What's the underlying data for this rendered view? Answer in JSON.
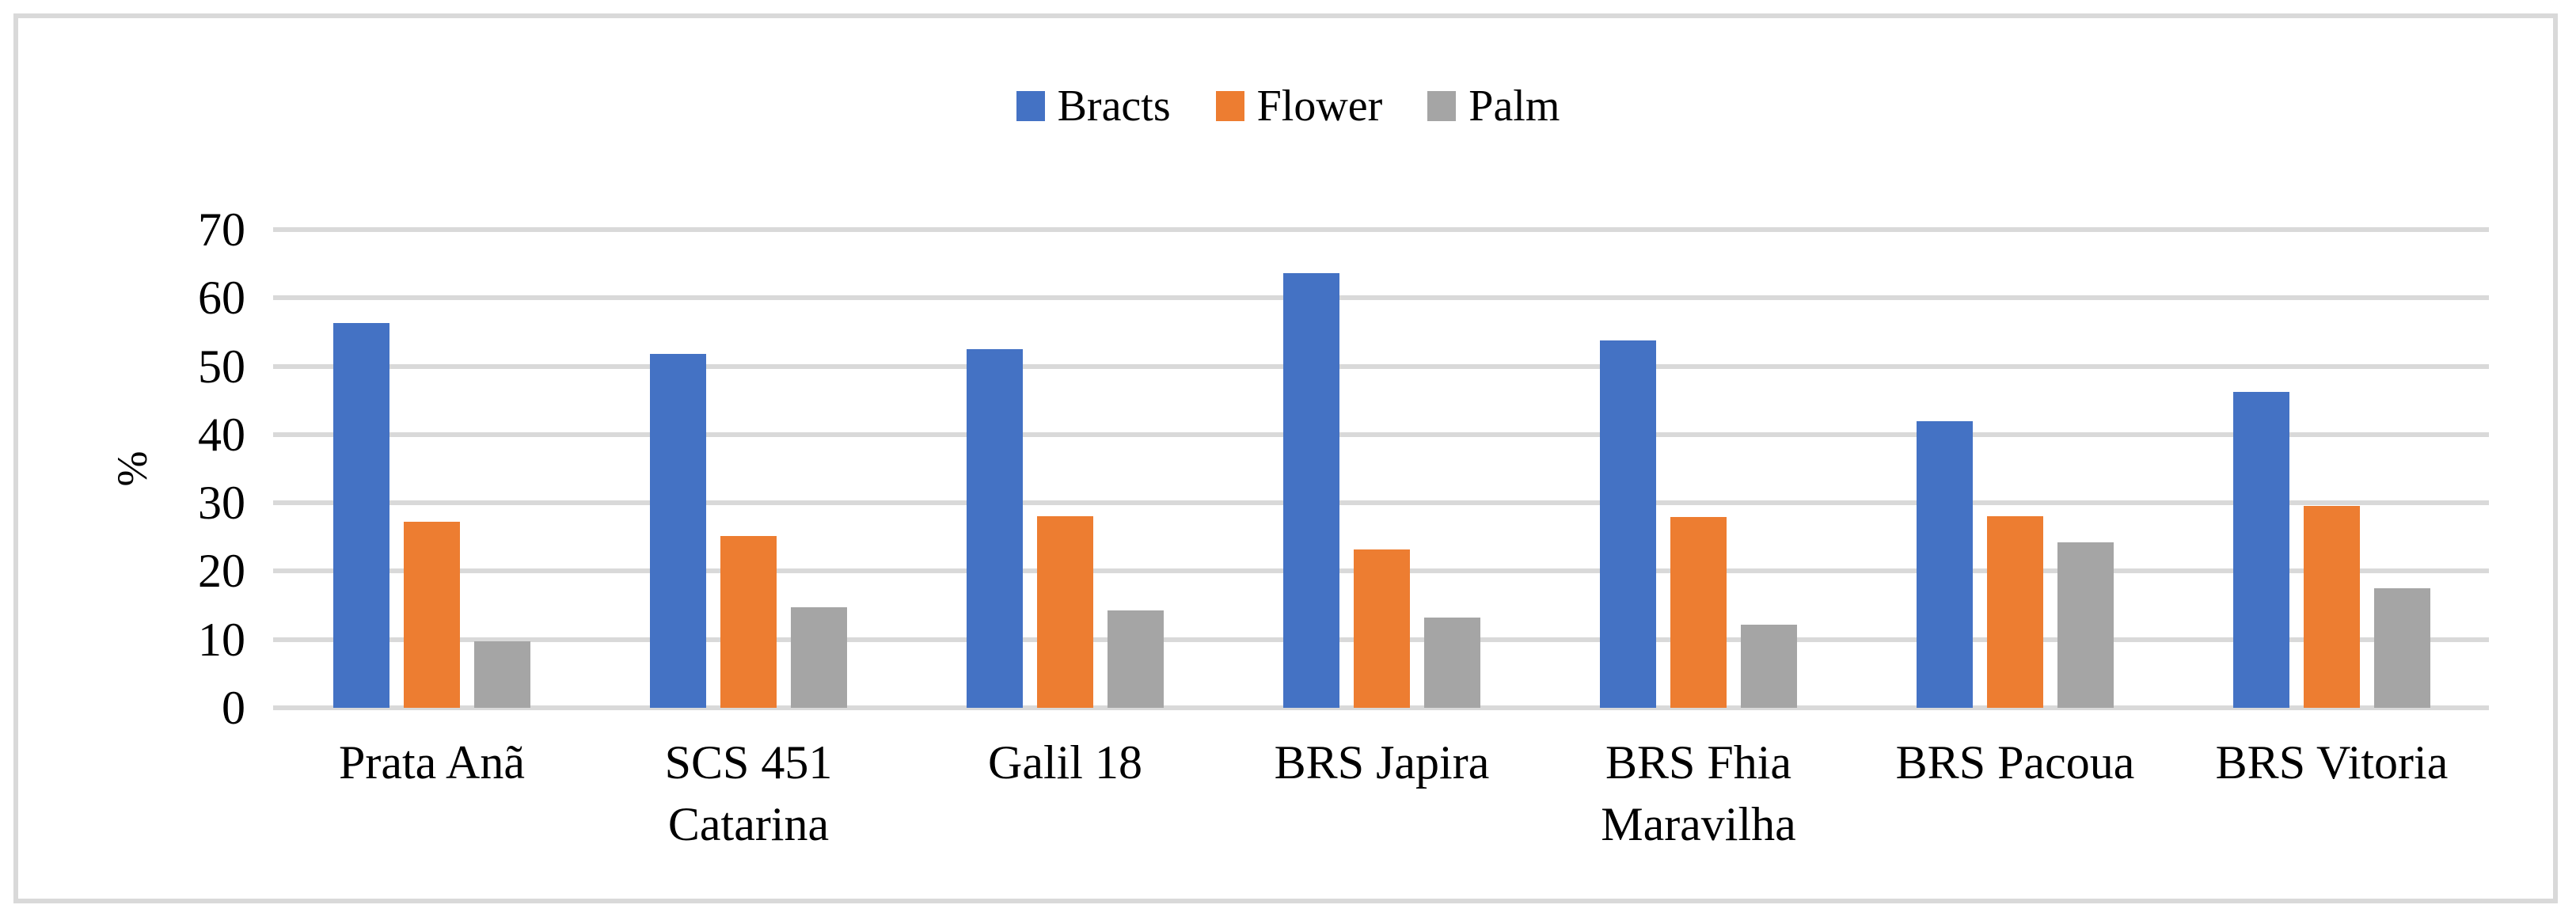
{
  "colors": {
    "bracts_blue": "#4472C4",
    "flower_orange": "#ED7D31",
    "palm_gray": "#A5A5A5",
    "gridline": "#D9D9D9",
    "frame_border": "#D9D9D9",
    "text": "#000000"
  },
  "chart_data": {
    "type": "bar",
    "title": "",
    "xlabel": "",
    "ylabel": "%",
    "ylim": [
      0,
      70
    ],
    "yticks": [
      0,
      10,
      20,
      30,
      40,
      50,
      60,
      70
    ],
    "grid": true,
    "legend_position": "top-center",
    "categories": [
      "Prata Anã",
      "SCS 451 Catarina",
      "Galil 18",
      "BRS Japira",
      "BRS Fhia Maravilha",
      "BRS Pacoua",
      "BRS Vitoria"
    ],
    "category_label_lines": [
      [
        "Prata Anã"
      ],
      [
        "SCS 451",
        "Catarina"
      ],
      [
        "Galil 18"
      ],
      [
        "BRS Japira"
      ],
      [
        "BRS Fhia",
        "Maravilha"
      ],
      [
        "BRS Pacoua"
      ],
      [
        "BRS Vitoria"
      ]
    ],
    "series": [
      {
        "name": "Bracts",
        "color": "#4472C4",
        "values": [
          56.3,
          51.8,
          52.5,
          63.6,
          53.8,
          41.9,
          46.2
        ]
      },
      {
        "name": "Flower",
        "color": "#ED7D31",
        "values": [
          27.2,
          25.1,
          28.1,
          23.2,
          27.9,
          28.0,
          29.5
        ]
      },
      {
        "name": "Palm",
        "color": "#A5A5A5",
        "values": [
          9.7,
          14.7,
          14.2,
          13.2,
          12.2,
          24.2,
          17.5
        ]
      }
    ]
  }
}
